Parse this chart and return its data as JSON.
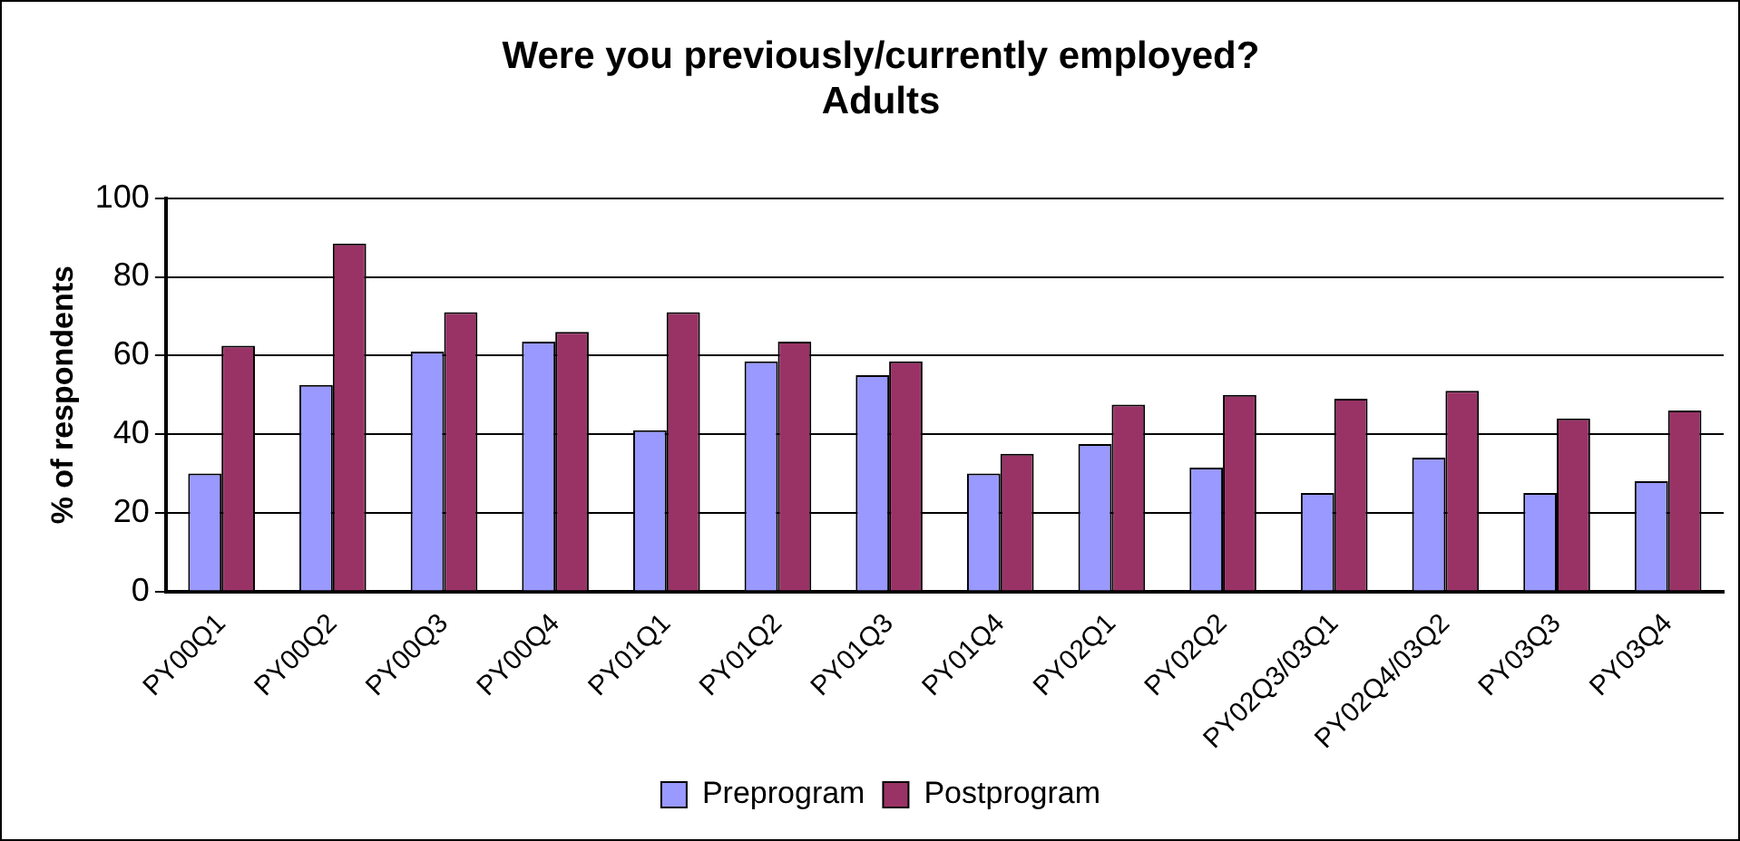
{
  "chart_data": {
    "type": "bar",
    "title": [
      "Were you previously/currently employed?",
      "Adults"
    ],
    "ylabel": "% of respondents",
    "categories": [
      "PY00Q1",
      "PY00Q2",
      "PY00Q3",
      "PY00Q4",
      "PY01Q1",
      "PY01Q2",
      "PY01Q3",
      "PY01Q4",
      "PY02Q1",
      "PY02Q2",
      "PY02Q3/03Q1",
      "PY02Q4/03Q2",
      "PY03Q3",
      "PY03Q4"
    ],
    "series": [
      {
        "name": "Preprogram",
        "color": "#9999ff",
        "values": [
          30,
          52.5,
          61,
          63.5,
          41,
          58.5,
          55,
          30,
          37.5,
          31.5,
          25,
          34,
          25,
          28
        ]
      },
      {
        "name": "Postprogram",
        "color": "#993366",
        "values": [
          62.5,
          88.5,
          71,
          66,
          71,
          63.5,
          58.5,
          35,
          47.5,
          50,
          49,
          51,
          44,
          46
        ]
      }
    ],
    "ylim": [
      0,
      100
    ],
    "yticks": [
      0,
      20,
      40,
      60,
      80,
      100
    ],
    "grid": "y",
    "legend": "bottom"
  }
}
